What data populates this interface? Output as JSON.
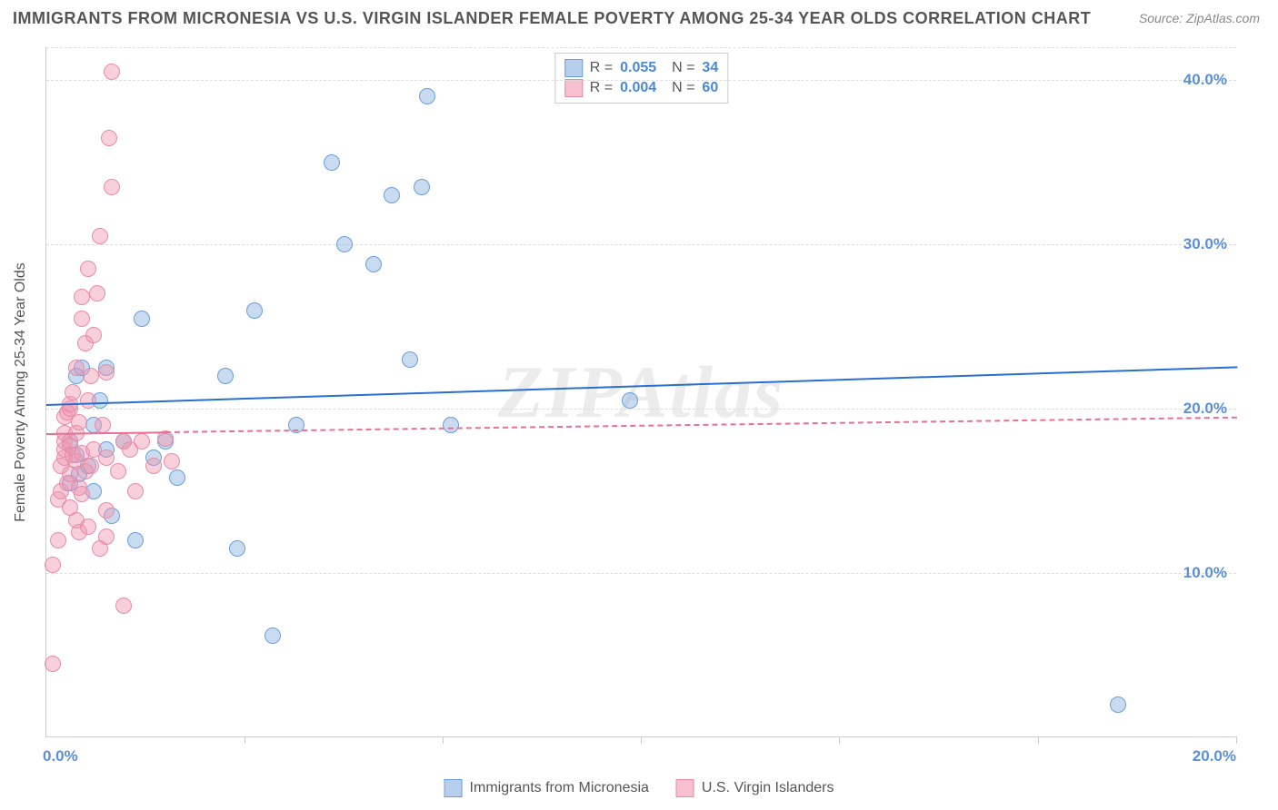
{
  "title": "IMMIGRANTS FROM MICRONESIA VS U.S. VIRGIN ISLANDER FEMALE POVERTY AMONG 25-34 YEAR OLDS CORRELATION CHART",
  "source": "Source: ZipAtlas.com",
  "watermark": "ZIPAtlas",
  "y_axis_label": "Female Poverty Among 25-34 Year Olds",
  "chart": {
    "type": "scatter",
    "xlim": [
      0,
      20
    ],
    "ylim": [
      0,
      42
    ],
    "x_tick_step": 3.33,
    "y_ticks": [
      10,
      20,
      30,
      40
    ],
    "x_start_label": "0.0%",
    "x_end_label": "20.0%",
    "y_tick_labels": [
      "10.0%",
      "20.0%",
      "30.0%",
      "40.0%"
    ],
    "background_color": "#ffffff",
    "grid_color": "#dddddd",
    "series": [
      {
        "name": "Immigrants from Micronesia",
        "color_fill": "rgba(135,175,225,0.45)",
        "color_stroke": "#6b9ed8",
        "trend_color": "#2b6ed2",
        "trend_dash": false,
        "r": "0.055",
        "n": "34",
        "trend": {
          "y_at_x0": 20.3,
          "y_at_x20": 22.6
        },
        "points": [
          [
            0.4,
            15.5
          ],
          [
            0.4,
            18.0
          ],
          [
            0.5,
            17.2
          ],
          [
            0.5,
            22.0
          ],
          [
            0.55,
            16.0
          ],
          [
            0.6,
            22.5
          ],
          [
            0.7,
            16.5
          ],
          [
            0.8,
            15.0
          ],
          [
            0.8,
            19.0
          ],
          [
            0.9,
            20.5
          ],
          [
            1.0,
            17.5
          ],
          [
            1.0,
            22.5
          ],
          [
            1.1,
            13.5
          ],
          [
            1.3,
            18.0
          ],
          [
            1.5,
            12.0
          ],
          [
            1.6,
            25.5
          ],
          [
            1.8,
            17.0
          ],
          [
            2.0,
            18.0
          ],
          [
            2.2,
            15.8
          ],
          [
            3.0,
            22.0
          ],
          [
            3.2,
            11.5
          ],
          [
            3.5,
            26.0
          ],
          [
            3.8,
            6.2
          ],
          [
            4.2,
            19.0
          ],
          [
            4.8,
            35.0
          ],
          [
            5.0,
            30.0
          ],
          [
            5.5,
            28.8
          ],
          [
            5.8,
            33.0
          ],
          [
            6.1,
            23.0
          ],
          [
            6.3,
            33.5
          ],
          [
            6.4,
            39.0
          ],
          [
            6.8,
            19.0
          ],
          [
            9.8,
            20.5
          ],
          [
            18.0,
            2.0
          ]
        ]
      },
      {
        "name": "U.S. Virgin Islanders",
        "color_fill": "rgba(240,150,175,0.45)",
        "color_stroke": "#e88ba8",
        "trend_color": "#e87095",
        "trend_dash": true,
        "r": "0.004",
        "n": "60",
        "trend": {
          "y_at_x0": 18.5,
          "y_at_x20": 19.5
        },
        "trend_solid_until": 2.0,
        "points": [
          [
            0.1,
            4.5
          ],
          [
            0.1,
            10.5
          ],
          [
            0.2,
            12.0
          ],
          [
            0.2,
            14.5
          ],
          [
            0.25,
            15.0
          ],
          [
            0.25,
            16.5
          ],
          [
            0.3,
            17.0
          ],
          [
            0.3,
            17.5
          ],
          [
            0.3,
            18.0
          ],
          [
            0.3,
            18.5
          ],
          [
            0.3,
            19.5
          ],
          [
            0.35,
            15.5
          ],
          [
            0.35,
            19.8
          ],
          [
            0.4,
            14.0
          ],
          [
            0.4,
            16.0
          ],
          [
            0.4,
            17.8
          ],
          [
            0.4,
            20.0
          ],
          [
            0.4,
            20.3
          ],
          [
            0.45,
            17.2
          ],
          [
            0.45,
            21.0
          ],
          [
            0.5,
            13.2
          ],
          [
            0.5,
            16.8
          ],
          [
            0.5,
            18.5
          ],
          [
            0.5,
            22.5
          ],
          [
            0.55,
            12.5
          ],
          [
            0.55,
            15.2
          ],
          [
            0.55,
            19.2
          ],
          [
            0.6,
            14.8
          ],
          [
            0.6,
            17.3
          ],
          [
            0.6,
            25.5
          ],
          [
            0.6,
            26.8
          ],
          [
            0.65,
            16.2
          ],
          [
            0.65,
            24.0
          ],
          [
            0.7,
            12.8
          ],
          [
            0.7,
            20.5
          ],
          [
            0.7,
            28.5
          ],
          [
            0.75,
            16.5
          ],
          [
            0.75,
            22.0
          ],
          [
            0.8,
            17.5
          ],
          [
            0.8,
            24.5
          ],
          [
            0.85,
            27.0
          ],
          [
            0.9,
            11.5
          ],
          [
            0.9,
            30.5
          ],
          [
            0.95,
            19.0
          ],
          [
            1.0,
            12.2
          ],
          [
            1.0,
            13.8
          ],
          [
            1.0,
            17.0
          ],
          [
            1.0,
            22.2
          ],
          [
            1.05,
            36.5
          ],
          [
            1.1,
            33.5
          ],
          [
            1.1,
            40.5
          ],
          [
            1.2,
            16.2
          ],
          [
            1.3,
            8.0
          ],
          [
            1.3,
            18.0
          ],
          [
            1.4,
            17.5
          ],
          [
            1.5,
            15.0
          ],
          [
            1.6,
            18.0
          ],
          [
            1.8,
            16.5
          ],
          [
            2.0,
            18.2
          ],
          [
            2.1,
            16.8
          ]
        ]
      }
    ]
  },
  "legend_bottom": [
    {
      "label": "Immigrants from Micronesia",
      "fill": "rgba(135,175,225,0.6)",
      "stroke": "#6b9ed8"
    },
    {
      "label": "U.S. Virgin Islanders",
      "fill": "rgba(240,150,175,0.6)",
      "stroke": "#e88ba8"
    }
  ]
}
